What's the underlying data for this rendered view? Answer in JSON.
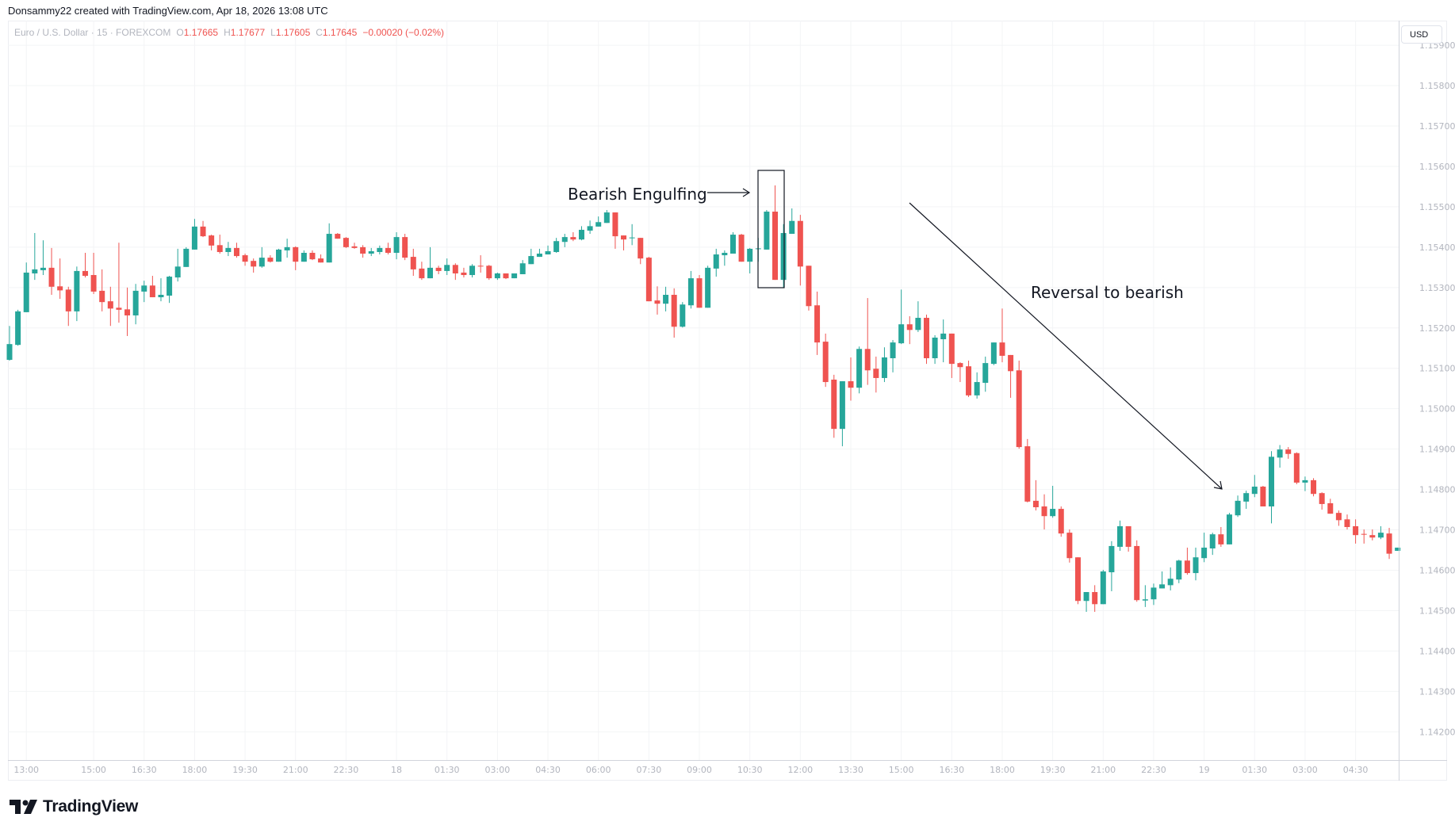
{
  "attribution": "Donsammy22 created with TradingView.com, Apr 18, 2026 13:08 UTC",
  "legend": {
    "symbol": "Euro / U.S. Dollar · 15 · FOREXCOM",
    "o_label": "O",
    "o": "1.17665",
    "h_label": "H",
    "h": "1.17677",
    "l_label": "L",
    "l": "1.17605",
    "c_label": "C",
    "c": "1.17645",
    "change": "−0.00020 (−0.02%)"
  },
  "currency_button": "USD",
  "branding": "TradingView",
  "colors": {
    "up": "#26a69a",
    "down": "#ef5350",
    "annotation": "#131722"
  },
  "chart_data": {
    "type": "candlestick",
    "title": "Euro / U.S. Dollar · 15 · FOREXCOM",
    "interval_minutes": 15,
    "first_bar_time": "12:30",
    "ylim": [
      1.1413,
      1.15961
    ],
    "grid": true,
    "y_ticks": [
      "1.14200",
      "1.14300",
      "1.14400",
      "1.14500",
      "1.14600",
      "1.14700",
      "1.14800",
      "1.14900",
      "1.15000",
      "1.15100",
      "1.15200",
      "1.15300",
      "1.15400",
      "1.15500",
      "1.15600",
      "1.15700",
      "1.15800",
      "1.15900"
    ],
    "x_ticks": [
      {
        "label": "13:00",
        "bar": 2
      },
      {
        "label": "15:00",
        "bar": 10
      },
      {
        "label": "16:30",
        "bar": 16
      },
      {
        "label": "18:00",
        "bar": 22
      },
      {
        "label": "19:30",
        "bar": 28
      },
      {
        "label": "21:00",
        "bar": 34
      },
      {
        "label": "22:30",
        "bar": 40
      },
      {
        "label": "18",
        "bar": 46
      },
      {
        "label": "01:30",
        "bar": 52
      },
      {
        "label": "03:00",
        "bar": 58
      },
      {
        "label": "04:30",
        "bar": 64
      },
      {
        "label": "06:00",
        "bar": 70
      },
      {
        "label": "07:30",
        "bar": 76
      },
      {
        "label": "09:00",
        "bar": 82
      },
      {
        "label": "10:30",
        "bar": 88
      },
      {
        "label": "12:00",
        "bar": 94
      },
      {
        "label": "13:30",
        "bar": 100
      },
      {
        "label": "15:00",
        "bar": 106
      },
      {
        "label": "16:30",
        "bar": 112
      },
      {
        "label": "18:00",
        "bar": 118
      },
      {
        "label": "19:30",
        "bar": 124
      },
      {
        "label": "21:00",
        "bar": 130
      },
      {
        "label": "22:30",
        "bar": 136
      },
      {
        "label": "19",
        "bar": 142
      },
      {
        "label": "01:30",
        "bar": 148
      },
      {
        "label": "03:00",
        "bar": 154
      },
      {
        "label": "04:30",
        "bar": 160
      }
    ],
    "ohlc": [
      [
        1.15121,
        1.15205,
        1.15119,
        1.1516
      ],
      [
        1.15158,
        1.15245,
        1.15156,
        1.15241
      ],
      [
        1.15239,
        1.15362,
        1.15239,
        1.15337
      ],
      [
        1.15335,
        1.15435,
        1.15319,
        1.15345
      ],
      [
        1.15343,
        1.15417,
        1.15331,
        1.15349
      ],
      [
        1.15349,
        1.15398,
        1.15282,
        1.15302
      ],
      [
        1.15303,
        1.15372,
        1.15272,
        1.15293
      ],
      [
        1.15295,
        1.15302,
        1.15205,
        1.15241
      ],
      [
        1.15241,
        1.15352,
        1.15217,
        1.15341
      ],
      [
        1.15341,
        1.15386,
        1.15325,
        1.15329
      ],
      [
        1.15331,
        1.15386,
        1.15284,
        1.1529
      ],
      [
        1.15292,
        1.15345,
        1.15241,
        1.15264
      ],
      [
        1.15266,
        1.15302,
        1.15205,
        1.15248
      ],
      [
        1.1525,
        1.15411,
        1.15213,
        1.15245
      ],
      [
        1.15246,
        1.153,
        1.1518,
        1.15231
      ],
      [
        1.15231,
        1.15309,
        1.15209,
        1.15292
      ],
      [
        1.1529,
        1.15317,
        1.15264,
        1.15305
      ],
      [
        1.15305,
        1.15329,
        1.15276,
        1.15276
      ],
      [
        1.15276,
        1.15323,
        1.15266,
        1.15282
      ],
      [
        1.1528,
        1.15329,
        1.15262,
        1.15327
      ],
      [
        1.15325,
        1.15396,
        1.15315,
        1.15352
      ],
      [
        1.15351,
        1.154,
        1.15351,
        1.15396
      ],
      [
        1.15394,
        1.1547,
        1.15394,
        1.15451
      ],
      [
        1.15451,
        1.15465,
        1.15425,
        1.15427
      ],
      [
        1.15429,
        1.15431,
        1.15392,
        1.15404
      ],
      [
        1.15405,
        1.15431,
        1.15384,
        1.15388
      ],
      [
        1.15388,
        1.15413,
        1.15378,
        1.15398
      ],
      [
        1.15398,
        1.15411,
        1.15374,
        1.15378
      ],
      [
        1.1538,
        1.15384,
        1.15354,
        1.15364
      ],
      [
        1.15366,
        1.15372,
        1.15337,
        1.15352
      ],
      [
        1.15352,
        1.154,
        1.15349,
        1.15374
      ],
      [
        1.15374,
        1.1538,
        1.15362,
        1.15364
      ],
      [
        1.15364,
        1.15396,
        1.15364,
        1.15394
      ],
      [
        1.15392,
        1.15421,
        1.15374,
        1.154
      ],
      [
        1.154,
        1.15402,
        1.15343,
        1.15364
      ],
      [
        1.15364,
        1.15392,
        1.15364,
        1.15386
      ],
      [
        1.15386,
        1.15392,
        1.15368,
        1.1537
      ],
      [
        1.15372,
        1.15382,
        1.15362,
        1.15362
      ],
      [
        1.15362,
        1.15459,
        1.15362,
        1.15433
      ],
      [
        1.15433,
        1.15435,
        1.15421,
        1.15421
      ],
      [
        1.15423,
        1.15425,
        1.15398,
        1.154
      ],
      [
        1.15402,
        1.15411,
        1.15396,
        1.15398
      ],
      [
        1.154,
        1.15405,
        1.15374,
        1.15384
      ],
      [
        1.15384,
        1.15398,
        1.15378,
        1.1539
      ],
      [
        1.15388,
        1.15404,
        1.15382,
        1.15398
      ],
      [
        1.15398,
        1.15411,
        1.15382,
        1.15386
      ],
      [
        1.15386,
        1.15437,
        1.1537,
        1.15425
      ],
      [
        1.15425,
        1.15433,
        1.15368,
        1.15374
      ],
      [
        1.15376,
        1.15396,
        1.15329,
        1.15345
      ],
      [
        1.15347,
        1.15364,
        1.15319,
        1.15323
      ],
      [
        1.15323,
        1.154,
        1.15323,
        1.15349
      ],
      [
        1.15349,
        1.15354,
        1.15333,
        1.15341
      ],
      [
        1.15341,
        1.15372,
        1.15331,
        1.15356
      ],
      [
        1.15356,
        1.1536,
        1.15319,
        1.15335
      ],
      [
        1.15337,
        1.15349,
        1.15325,
        1.15331
      ],
      [
        1.15331,
        1.15358,
        1.15325,
        1.15354
      ],
      [
        1.15354,
        1.1538,
        1.15337,
        1.15352
      ],
      [
        1.15354,
        1.15356,
        1.15319,
        1.15323
      ],
      [
        1.15323,
        1.15337,
        1.15319,
        1.15335
      ],
      [
        1.15335,
        1.15335,
        1.15321,
        1.15323
      ],
      [
        1.15323,
        1.15335,
        1.15323,
        1.15335
      ],
      [
        1.15333,
        1.15368,
        1.15333,
        1.1536
      ],
      [
        1.15358,
        1.15396,
        1.15358,
        1.15378
      ],
      [
        1.15376,
        1.15396,
        1.15376,
        1.15384
      ],
      [
        1.15382,
        1.15404,
        1.15382,
        1.1539
      ],
      [
        1.15388,
        1.15423,
        1.15386,
        1.15415
      ],
      [
        1.15413,
        1.15433,
        1.154,
        1.15425
      ],
      [
        1.15425,
        1.15437,
        1.15415,
        1.15419
      ],
      [
        1.15419,
        1.15452,
        1.15417,
        1.15443
      ],
      [
        1.15441,
        1.15466,
        1.15433,
        1.15452
      ],
      [
        1.15451,
        1.15476,
        1.15451,
        1.15462
      ],
      [
        1.1546,
        1.15492,
        1.1546,
        1.15486
      ],
      [
        1.15486,
        1.15486,
        1.15396,
        1.15427
      ],
      [
        1.15429,
        1.15429,
        1.15392,
        1.15419
      ],
      [
        1.15422,
        1.15457,
        1.15405,
        1.15424
      ],
      [
        1.15423,
        1.15423,
        1.15358,
        1.15372
      ],
      [
        1.15374,
        1.15376,
        1.15266,
        1.15266
      ],
      [
        1.15268,
        1.15303,
        1.15233,
        1.1526
      ],
      [
        1.1526,
        1.15302,
        1.15241,
        1.15282
      ],
      [
        1.15282,
        1.15298,
        1.15176,
        1.15203
      ],
      [
        1.15203,
        1.15264,
        1.15201,
        1.15258
      ],
      [
        1.15256,
        1.15341,
        1.15248,
        1.15323
      ],
      [
        1.15323,
        1.15331,
        1.1525,
        1.1525
      ],
      [
        1.1525,
        1.15354,
        1.1525,
        1.15349
      ],
      [
        1.15347,
        1.15396,
        1.15327,
        1.15382
      ],
      [
        1.1538,
        1.15392,
        1.15354,
        1.15386
      ],
      [
        1.15384,
        1.15437,
        1.15384,
        1.15431
      ],
      [
        1.15431,
        1.15433,
        1.15364,
        1.15364
      ],
      [
        1.15364,
        1.15398,
        1.15335,
        1.15396
      ],
      [
        1.15395,
        1.15423,
        1.15364,
        1.15397
      ],
      [
        1.15394,
        1.15492,
        1.15394,
        1.15488
      ],
      [
        1.15488,
        1.15553,
        1.15319,
        1.15319
      ],
      [
        1.15319,
        1.15457,
        1.153,
        1.15435
      ],
      [
        1.15433,
        1.15496,
        1.15433,
        1.15465
      ],
      [
        1.15465,
        1.1548,
        1.15305,
        1.15352
      ],
      [
        1.15354,
        1.15354,
        1.15243,
        1.15254
      ],
      [
        1.15256,
        1.1529,
        1.15133,
        1.15164
      ],
      [
        1.15166,
        1.15186,
        1.15054,
        1.15066
      ],
      [
        1.15072,
        1.15084,
        1.14928,
        1.1495
      ],
      [
        1.1495,
        1.15068,
        1.14907,
        1.15068
      ],
      [
        1.15068,
        1.15127,
        1.1502,
        1.15052
      ],
      [
        1.15052,
        1.15154,
        1.15038,
        1.15148
      ],
      [
        1.15148,
        1.15274,
        1.15059,
        1.15095
      ],
      [
        1.15099,
        1.15129,
        1.1504,
        1.15076
      ],
      [
        1.15076,
        1.15152,
        1.15066,
        1.15127
      ],
      [
        1.15125,
        1.1517,
        1.1509,
        1.15164
      ],
      [
        1.15162,
        1.15295,
        1.1516,
        1.15209
      ],
      [
        1.15209,
        1.15229,
        1.1516,
        1.15195
      ],
      [
        1.15195,
        1.15266,
        1.1519,
        1.15225
      ],
      [
        1.15225,
        1.15233,
        1.15111,
        1.15125
      ],
      [
        1.15125,
        1.15182,
        1.15111,
        1.15176
      ],
      [
        1.15172,
        1.15221,
        1.15115,
        1.15186
      ],
      [
        1.15186,
        1.15186,
        1.15076,
        1.15111
      ],
      [
        1.15113,
        1.15115,
        1.15066,
        1.15103
      ],
      [
        1.15105,
        1.15119,
        1.15029,
        1.15033
      ],
      [
        1.15033,
        1.1509,
        1.15025,
        1.15066
      ],
      [
        1.15064,
        1.15129,
        1.15042,
        1.15113
      ],
      [
        1.15111,
        1.15164,
        1.15108,
        1.15164
      ],
      [
        1.15164,
        1.15248,
        1.15115,
        1.15131
      ],
      [
        1.15133,
        1.15133,
        1.15027,
        1.15093
      ],
      [
        1.15095,
        1.15119,
        1.14901,
        1.14905
      ],
      [
        1.14907,
        1.14925,
        1.14768,
        1.1477
      ],
      [
        1.14772,
        1.14823,
        1.14748,
        1.14756
      ],
      [
        1.14758,
        1.14788,
        1.14701,
        1.14734
      ],
      [
        1.14734,
        1.14809,
        1.1473,
        1.14752
      ],
      [
        1.14752,
        1.14758,
        1.14683,
        1.14691
      ],
      [
        1.14693,
        1.14701,
        1.14619,
        1.1463
      ],
      [
        1.14632,
        1.14632,
        1.14516,
        1.14524
      ],
      [
        1.14524,
        1.14546,
        1.14497,
        1.14546
      ],
      [
        1.14546,
        1.14563,
        1.14497,
        1.14516
      ],
      [
        1.14516,
        1.14601,
        1.14516,
        1.14597
      ],
      [
        1.14595,
        1.14672,
        1.14548,
        1.1466
      ],
      [
        1.14658,
        1.14723,
        1.14648,
        1.14709
      ],
      [
        1.14709,
        1.14709,
        1.14646,
        1.14658
      ],
      [
        1.1466,
        1.14674,
        1.14522,
        1.14526
      ],
      [
        1.14525,
        1.14563,
        1.14509,
        1.14528
      ],
      [
        1.14528,
        1.14567,
        1.14514,
        1.14557
      ],
      [
        1.14555,
        1.14597,
        1.14555,
        1.14565
      ],
      [
        1.14563,
        1.14607,
        1.1455,
        1.14579
      ],
      [
        1.14577,
        1.14626,
        1.14568,
        1.14624
      ],
      [
        1.14624,
        1.14656,
        1.14589,
        1.14593
      ],
      [
        1.14593,
        1.14656,
        1.14575,
        1.14632
      ],
      [
        1.1463,
        1.14693,
        1.1462,
        1.14656
      ],
      [
        1.14654,
        1.14693,
        1.14638,
        1.14689
      ],
      [
        1.14689,
        1.14707,
        1.14658,
        1.14664
      ],
      [
        1.14664,
        1.14742,
        1.14664,
        1.14738
      ],
      [
        1.14736,
        1.14785,
        1.14732,
        1.14772
      ],
      [
        1.1477,
        1.14797,
        1.14752,
        1.14791
      ],
      [
        1.14789,
        1.14836,
        1.14781,
        1.14807
      ],
      [
        1.14807,
        1.14809,
        1.14758,
        1.14758
      ],
      [
        1.14758,
        1.14895,
        1.14716,
        1.14881
      ],
      [
        1.14879,
        1.1491,
        1.14854,
        1.14899
      ],
      [
        1.14899,
        1.14905,
        1.14876,
        1.14888
      ],
      [
        1.1489,
        1.14892,
        1.14813,
        1.14817
      ],
      [
        1.14817,
        1.14832,
        1.14796,
        1.14823
      ],
      [
        1.14823,
        1.14828,
        1.14783,
        1.14789
      ],
      [
        1.14791,
        1.14793,
        1.1475,
        1.14764
      ],
      [
        1.14766,
        1.14777,
        1.1474,
        1.1474
      ],
      [
        1.14742,
        1.14748,
        1.1471,
        1.14724
      ],
      [
        1.14726,
        1.14738,
        1.14701,
        1.14707
      ],
      [
        1.14709,
        1.14726,
        1.14666,
        1.14687
      ],
      [
        1.1469,
        1.14701,
        1.14666,
        1.14688
      ],
      [
        1.14687,
        1.14701,
        1.14674,
        1.14681
      ],
      [
        1.14681,
        1.14709,
        1.14677,
        1.14693
      ],
      [
        1.14691,
        1.14705,
        1.14628,
        1.14641
      ],
      [
        1.14648,
        1.14656,
        1.14648,
        1.14656
      ]
    ],
    "annotations": {
      "pattern_label": "Bearish Engulfing",
      "trend_label": "Reversal to bearish"
    }
  }
}
